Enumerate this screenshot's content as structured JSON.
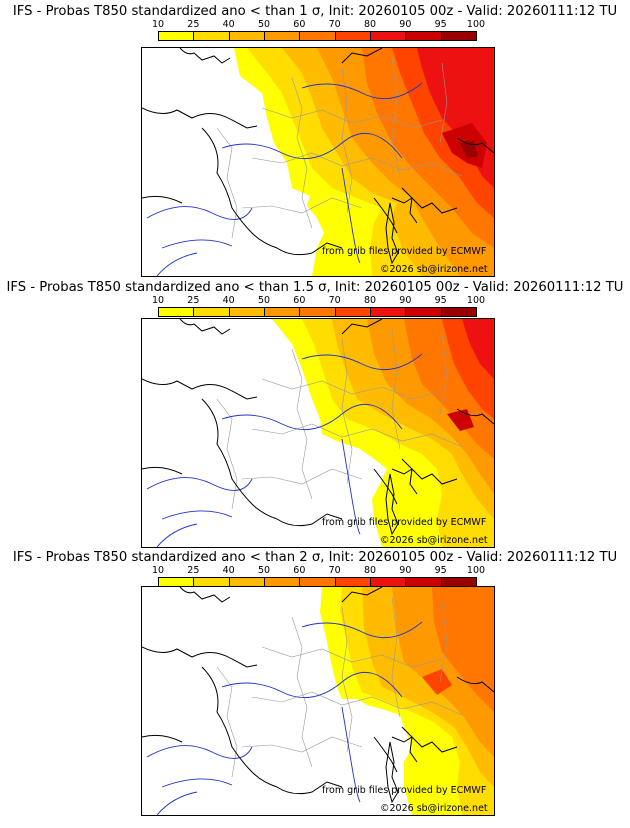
{
  "colors": {
    "p10": "#ffff00",
    "p25": "#ffdd00",
    "p40": "#ffbb00",
    "p50": "#ff9900",
    "p60": "#ff7700",
    "p70": "#ff4400",
    "p80": "#ee1111",
    "p90": "#cc0000",
    "p95": "#990000",
    "p100": "#550000",
    "country_border": "#000000",
    "region_border": "#999999",
    "river": "#2233cc"
  },
  "colorbar": {
    "labels": [
      "10",
      "25",
      "40",
      "50",
      "60",
      "70",
      "80",
      "90",
      "95",
      "100"
    ],
    "colors": [
      "#ffff00",
      "#ffdd00",
      "#ffbb00",
      "#ff9900",
      "#ff7700",
      "#ff4400",
      "#ee1111",
      "#cc0000",
      "#990000",
      "#550000"
    ]
  },
  "panels": [
    {
      "title": "IFS - Probas T850  standardized ano < than 1 σ, Init: 20260105 00z - Valid: 20260111:12 TU",
      "credit_source": "from grib files provided by ECMWF",
      "credit_copyright": "©2026 sb@irizone.net"
    },
    {
      "title": "IFS - Probas T850  standardized ano < than 1.5 σ, Init: 20260105 00z - Valid: 20260111:12 TU",
      "credit_source": "from grib files provided by ECMWF",
      "credit_copyright": "©2026 sb@irizone.net"
    },
    {
      "title": "IFS - Probas T850  standardized ano < than 2 σ, Init: 20260105 00z - Valid: 20260111:12 TU",
      "credit_source": "from grib files provided by ECMWF",
      "credit_copyright": "©2026 sb@irizone.net"
    }
  ]
}
